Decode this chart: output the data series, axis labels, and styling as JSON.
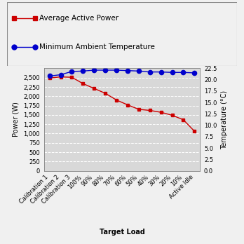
{
  "x_labels": [
    "Calibration 1",
    "Calibration 2",
    "Calibration 3",
    "100%",
    "90%",
    "80%",
    "70%",
    "60%",
    "50%",
    "40%",
    "30%",
    "20%",
    "10%",
    "Active Idle"
  ],
  "power_values": [
    2490,
    2520,
    2510,
    2340,
    2210,
    2080,
    1900,
    1770,
    1650,
    1620,
    1570,
    1490,
    1370,
    1060
  ],
  "temp_values": [
    20.8,
    21.1,
    21.8,
    21.9,
    22.1,
    22.1,
    22.1,
    22.0,
    21.9,
    21.7,
    21.7,
    21.6,
    21.6,
    21.5
  ],
  "power_color": "#cc0000",
  "temp_color": "#0000cc",
  "power_label": "Average Active Power",
  "temp_label": "Minimum Ambient Temperature",
  "xlabel": "Target Load",
  "ylabel_left": "Power (W)",
  "ylabel_right": "Temperature (°C)",
  "ylim_left": [
    0,
    2750
  ],
  "ylim_right": [
    0.0,
    22.5
  ],
  "yticks_left": [
    0,
    250,
    500,
    750,
    1000,
    1250,
    1500,
    1750,
    2000,
    2250,
    2500
  ],
  "yticks_right": [
    0.0,
    2.5,
    5.0,
    7.5,
    10.0,
    12.5,
    15.0,
    17.5,
    20.0,
    22.5
  ],
  "bg_color": "#f0f0f0",
  "plot_bg_color": "#d8d8d8",
  "grid_color": "#ffffff",
  "axis_fontsize": 7,
  "tick_fontsize": 6,
  "legend_fontsize": 7.5
}
